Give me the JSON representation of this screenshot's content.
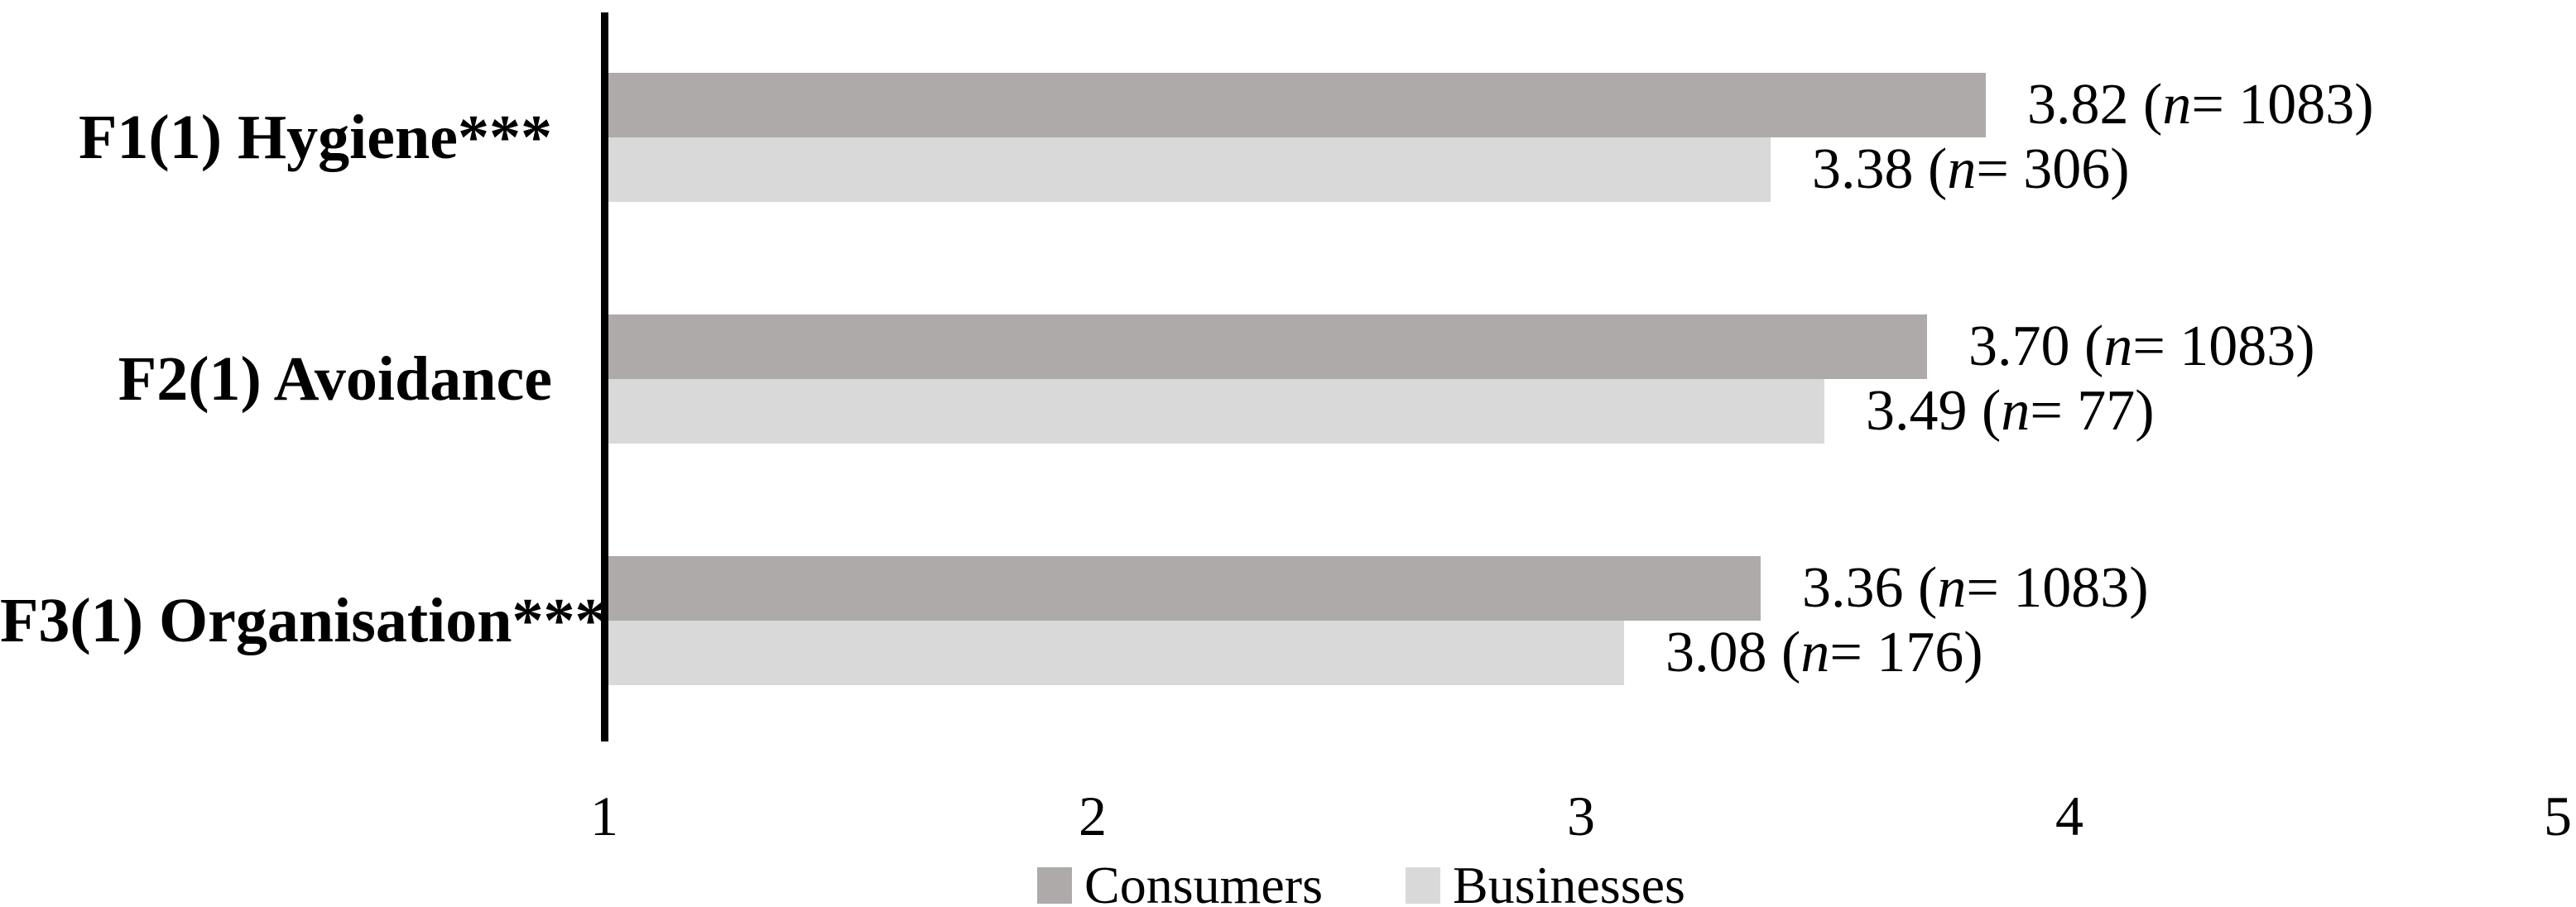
{
  "chart_data": {
    "type": "bar",
    "orientation": "horizontal",
    "title": "",
    "xlabel": "",
    "ylabel": "",
    "xlim": [
      1,
      5
    ],
    "x_ticks": [
      "1",
      "2",
      "3",
      "4",
      "5"
    ],
    "grid": false,
    "legend_position": "bottom",
    "categories": [
      "F1(1) Hygiene***",
      "F2(1) Avoidance",
      "F3(1) Organisation***"
    ],
    "series": [
      {
        "name": "Consumers",
        "color": "#aeaaaa",
        "values": [
          3.82,
          3.7,
          3.36
        ],
        "value_labels": [
          "3.82",
          "3.70",
          "3.36"
        ],
        "n_values": [
          1083,
          1083,
          1083
        ],
        "n_labels": [
          "1083",
          "1083",
          "1083"
        ]
      },
      {
        "name": "Businesses",
        "color": "#d9d9d9",
        "values": [
          3.38,
          3.49,
          3.08
        ],
        "value_labels": [
          "3.38",
          "3.49",
          "3.08"
        ],
        "n_values": [
          306,
          77,
          176
        ],
        "n_labels": [
          "306",
          "77",
          "176"
        ]
      }
    ],
    "bar_label_texts": [
      [
        "3.82 (n = 1083)",
        "3.70 (n = 1083)",
        "3.36 (n = 1083)"
      ],
      [
        "3.38 (n = 306)",
        "3.49 (n = 77)",
        "3.08 (n = 176)"
      ]
    ],
    "axis_color": "#000000",
    "text_color": "#000000"
  },
  "legend": {
    "items": [
      {
        "label": "Consumers",
        "color": "#aeaaaa"
      },
      {
        "label": "Businesses",
        "color": "#d9d9d9"
      }
    ]
  }
}
